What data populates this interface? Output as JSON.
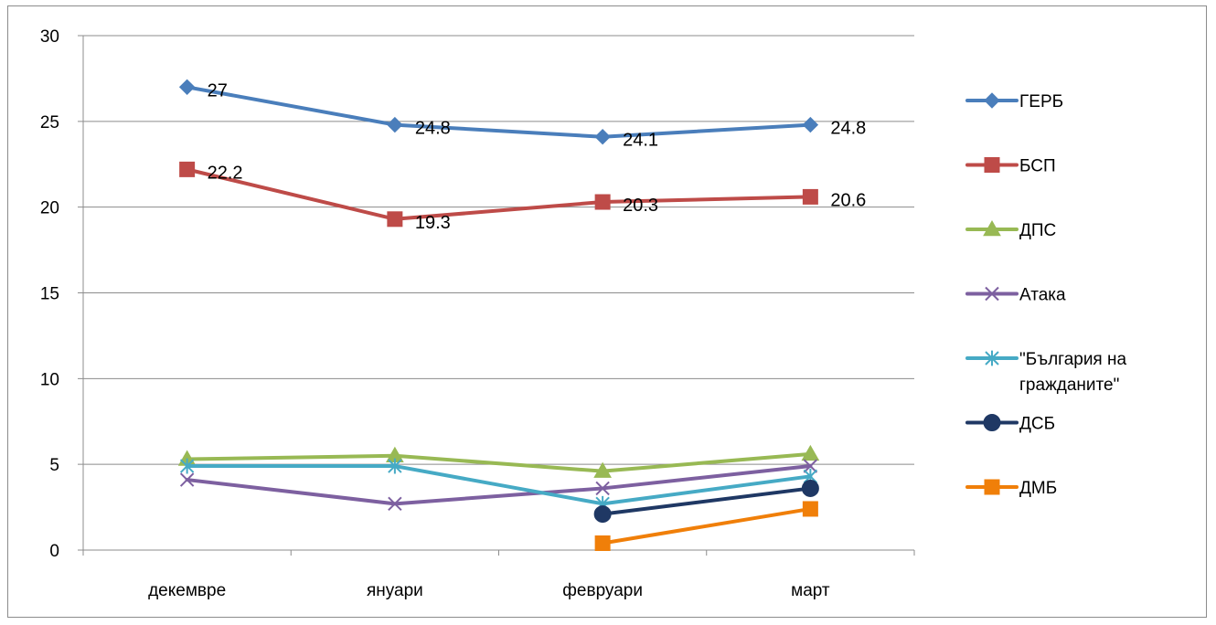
{
  "chart_data": {
    "type": "line",
    "categories": [
      "декемвре",
      "януари",
      "февруари",
      "март"
    ],
    "ylim": [
      0,
      30
    ],
    "yticks": [
      "0",
      "5",
      "10",
      "15",
      "20",
      "25",
      "30"
    ],
    "grid": true,
    "legend_position": "right",
    "series": [
      {
        "name": "ГЕРБ",
        "values": [
          27,
          24.8,
          24.1,
          24.8
        ],
        "labels": [
          "27",
          "24.8",
          "24.1",
          "24.8"
        ],
        "color": "#4a7ebb",
        "marker": "diamond"
      },
      {
        "name": "БСП",
        "values": [
          22.2,
          19.3,
          20.3,
          20.6
        ],
        "labels": [
          "22.2",
          "19.3",
          "20.3",
          "20.6"
        ],
        "color": "#be4b48",
        "marker": "square"
      },
      {
        "name": "ДПС",
        "values": [
          5.3,
          5.5,
          4.6,
          5.6
        ],
        "color": "#98b954",
        "marker": "triangle"
      },
      {
        "name": "Атака",
        "values": [
          4.1,
          2.7,
          3.6,
          4.9
        ],
        "color": "#7d60a0",
        "marker": "x"
      },
      {
        "name": "\"България на гражданите\"",
        "legend_lines": [
          "\"България на",
          "гражданите\""
        ],
        "values": [
          4.9,
          4.9,
          2.7,
          4.3
        ],
        "color": "#46aac5",
        "marker": "star"
      },
      {
        "name": "ДСБ",
        "values": [
          null,
          null,
          2.1,
          3.6
        ],
        "color": "#1f3864",
        "marker": "circle"
      },
      {
        "name": "ДМБ",
        "values": [
          null,
          null,
          0.4,
          2.4
        ],
        "color": "#f07f09",
        "marker": "square"
      }
    ]
  }
}
